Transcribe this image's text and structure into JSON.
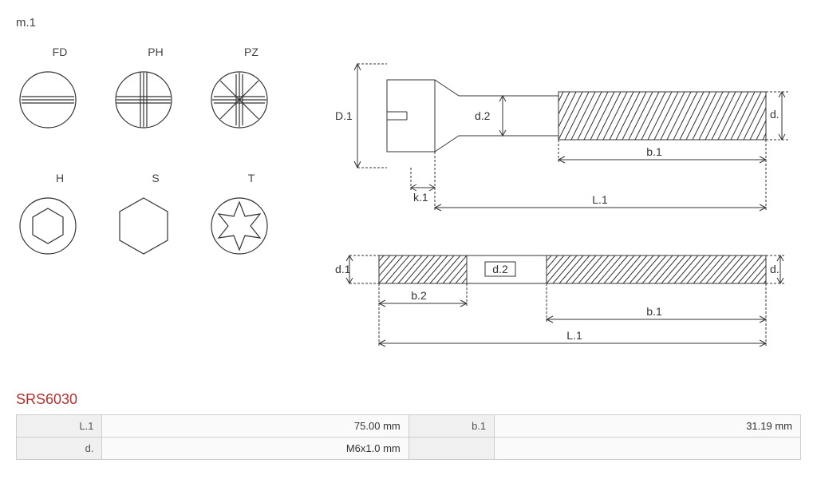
{
  "section_label": "m.1",
  "drives": [
    {
      "code": "FD",
      "type": "slot"
    },
    {
      "code": "PH",
      "type": "phillips"
    },
    {
      "code": "PZ",
      "type": "pozidriv"
    },
    {
      "code": "H",
      "type": "hex-socket"
    },
    {
      "code": "S",
      "type": "hex-external"
    },
    {
      "code": "T",
      "type": "torx"
    }
  ],
  "drive_style": {
    "circle_radius": 35,
    "stroke": "#333333",
    "stroke_width": 1.2,
    "fill": "none"
  },
  "screw_diagram": {
    "labels": {
      "D1": "D.1",
      "d2": "d.2",
      "d": "d.",
      "d1": "d.1",
      "b1": "b.1",
      "b2": "b.2",
      "L1": "L.1",
      "k1": "k.1"
    },
    "stroke": "#333333",
    "dash": "3,2",
    "thread_hatch_spacing": 8,
    "label_fontsize": 14
  },
  "part_number": "SRS6030",
  "part_number_color": "#b23030",
  "specs": [
    {
      "key": "L.1",
      "value": "75.00 mm"
    },
    {
      "key": "b.1",
      "value": "31.19 mm"
    },
    {
      "key": "d.",
      "value": "M6x1.0 mm"
    }
  ],
  "table_style": {
    "border_color": "#cccccc",
    "label_bg": "#f0f0f0",
    "value_bg": "#fafafa"
  }
}
